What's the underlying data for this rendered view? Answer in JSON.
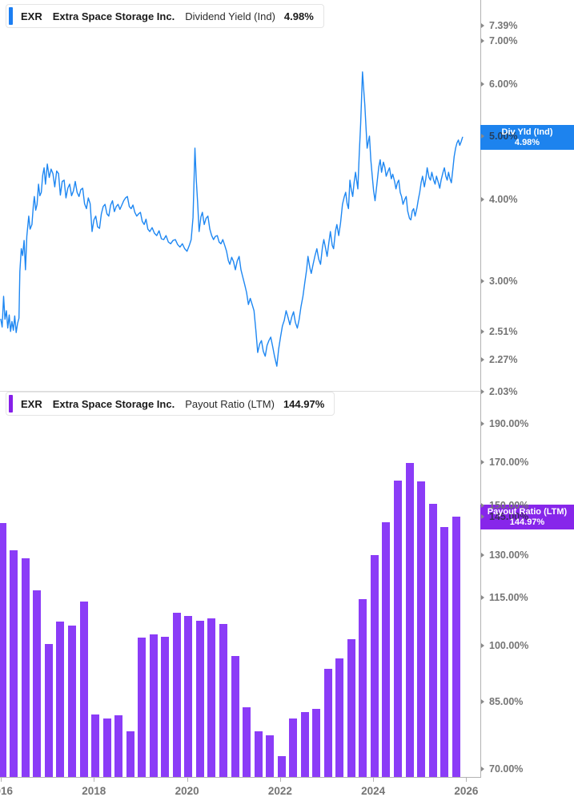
{
  "colors": {
    "dividend_line": "#1e87f2",
    "dividend_badge": "#1d83ee",
    "dividend_accent": "#1c7ef2",
    "payout_bar": "#8b3cf7",
    "payout_badge": "#8726ea",
    "payout_accent": "#861fe9",
    "tick_text": "#757575",
    "axis_line": "#b3b3b3",
    "divider": "#dcdcdc"
  },
  "x_axis": {
    "xlim": [
      2015.983,
      2026.302
    ],
    "ticks": [
      {
        "label": "2016",
        "year": 2016
      },
      {
        "label": "2018",
        "year": 2018
      },
      {
        "label": "2020",
        "year": 2020
      },
      {
        "label": "2022",
        "year": 2022
      },
      {
        "label": "2024",
        "year": 2024
      },
      {
        "label": "2026",
        "year": 2026
      }
    ]
  },
  "top_panel": {
    "chip": {
      "ticker": "EXR",
      "company": "Extra Space Storage Inc.",
      "metric": "Dividend Yield (Ind)",
      "value": "4.98%"
    },
    "badge": {
      "title": "Div Yld (Ind)",
      "value": "4.98%",
      "value_num": 4.98
    },
    "y_ticks": [
      {
        "label": "7.39%",
        "value": 7.39
      },
      {
        "label": "7.00%",
        "value": 7.0
      },
      {
        "label": "6.00%",
        "value": 6.0
      },
      {
        "label": "5.00%",
        "value": 5.0,
        "hidden_behind_badge": true
      },
      {
        "label": "4.00%",
        "value": 4.0
      },
      {
        "label": "3.00%",
        "value": 3.0
      },
      {
        "label": "2.51%",
        "value": 2.51
      },
      {
        "label": "2.27%",
        "value": 2.27
      },
      {
        "label": "2.03%",
        "value": 2.03
      }
    ],
    "chart_data": {
      "type": "line",
      "title": "EXR Extra Space Storage Inc. Dividend Yield (Ind)",
      "unit": "%",
      "scale": "log",
      "ylim_log": [
        2.035,
        8.08
      ],
      "current_value": 4.98,
      "x": [
        2016.0,
        2016.03,
        2016.06,
        2016.09,
        2016.12,
        2016.15,
        2016.18,
        2016.21,
        2016.24,
        2016.27,
        2016.3,
        2016.33,
        2016.36,
        2016.39,
        2016.41,
        2016.44,
        2016.47,
        2016.5,
        2016.53,
        2016.56,
        2016.6,
        2016.63,
        2016.67,
        2016.7,
        2016.72,
        2016.75,
        2016.78,
        2016.81,
        2016.84,
        2016.87,
        2016.9,
        2016.93,
        2016.96,
        2017.0,
        2017.04,
        2017.08,
        2017.12,
        2017.16,
        2017.2,
        2017.24,
        2017.28,
        2017.32,
        2017.36,
        2017.4,
        2017.44,
        2017.48,
        2017.52,
        2017.56,
        2017.6,
        2017.64,
        2017.68,
        2017.72,
        2017.76,
        2017.8,
        2017.84,
        2017.88,
        2017.92,
        2017.96,
        2018.0,
        2018.04,
        2018.08,
        2018.12,
        2018.16,
        2018.2,
        2018.24,
        2018.28,
        2018.32,
        2018.36,
        2018.4,
        2018.44,
        2018.48,
        2018.52,
        2018.56,
        2018.6,
        2018.64,
        2018.68,
        2018.72,
        2018.76,
        2018.8,
        2018.84,
        2018.88,
        2018.92,
        2018.96,
        2019.0,
        2019.04,
        2019.08,
        2019.12,
        2019.16,
        2019.2,
        2019.25,
        2019.3,
        2019.35,
        2019.4,
        2019.45,
        2019.5,
        2019.55,
        2019.6,
        2019.65,
        2019.7,
        2019.75,
        2019.8,
        2019.85,
        2019.9,
        2019.95,
        2020.0,
        2020.05,
        2020.09,
        2020.13,
        2020.17,
        2020.2,
        2020.23,
        2020.26,
        2020.3,
        2020.33,
        2020.37,
        2020.41,
        2020.45,
        2020.49,
        2020.53,
        2020.57,
        2020.61,
        2020.65,
        2020.69,
        2020.73,
        2020.77,
        2020.81,
        2020.85,
        2020.89,
        2020.92,
        2020.96,
        2021.0,
        2021.04,
        2021.08,
        2021.12,
        2021.16,
        2021.2,
        2021.24,
        2021.28,
        2021.32,
        2021.36,
        2021.4,
        2021.44,
        2021.48,
        2021.52,
        2021.56,
        2021.6,
        2021.64,
        2021.68,
        2021.72,
        2021.76,
        2021.8,
        2021.84,
        2021.88,
        2021.93,
        2021.97,
        2022.01,
        2022.05,
        2022.09,
        2022.13,
        2022.17,
        2022.21,
        2022.25,
        2022.29,
        2022.33,
        2022.37,
        2022.41,
        2022.45,
        2022.49,
        2022.53,
        2022.57,
        2022.6,
        2022.64,
        2022.67,
        2022.71,
        2022.75,
        2022.79,
        2022.83,
        2022.87,
        2022.91,
        2022.94,
        2022.98,
        2023.01,
        2023.05,
        2023.08,
        2023.12,
        2023.15,
        2023.19,
        2023.22,
        2023.26,
        2023.3,
        2023.34,
        2023.38,
        2023.41,
        2023.44,
        2023.47,
        2023.5,
        2023.53,
        2023.56,
        2023.59,
        2023.62,
        2023.65,
        2023.67,
        2023.7,
        2023.73,
        2023.77,
        2023.8,
        2023.82,
        2023.85,
        2023.87,
        2023.9,
        2023.92,
        2023.95,
        2023.98,
        2024.01,
        2024.04,
        2024.08,
        2024.12,
        2024.15,
        2024.18,
        2024.22,
        2024.25,
        2024.28,
        2024.32,
        2024.35,
        2024.39,
        2024.42,
        2024.46,
        2024.49,
        2024.52,
        2024.55,
        2024.58,
        2024.61,
        2024.64,
        2024.68,
        2024.71,
        2024.74,
        2024.78,
        2024.81,
        2024.84,
        2024.87,
        2024.9,
        2024.94,
        2024.97,
        2025.0,
        2025.03,
        2025.06,
        2025.1,
        2025.13,
        2025.16,
        2025.2,
        2025.23,
        2025.26,
        2025.3,
        2025.33,
        2025.36,
        2025.4,
        2025.43,
        2025.46,
        2025.5,
        2025.53,
        2025.56,
        2025.59,
        2025.62,
        2025.65,
        2025.68,
        2025.71,
        2025.74,
        2025.77,
        2025.8,
        2025.83,
        2025.86,
        2025.89,
        2025.92
      ],
      "y": [
        2.62,
        2.55,
        2.84,
        2.62,
        2.7,
        2.54,
        2.66,
        2.51,
        2.6,
        2.52,
        2.65,
        2.5,
        2.58,
        2.63,
        3.1,
        3.36,
        3.28,
        3.46,
        3.12,
        3.51,
        3.77,
        3.6,
        3.66,
        3.92,
        4.04,
        3.85,
        3.93,
        4.22,
        4.05,
        4.1,
        4.35,
        4.47,
        4.22,
        4.53,
        4.32,
        4.45,
        4.38,
        4.18,
        4.42,
        4.38,
        4.06,
        4.26,
        4.28,
        4.02,
        4.16,
        4.22,
        4.05,
        4.12,
        4.26,
        4.1,
        4.04,
        4.14,
        4.16,
        3.94,
        3.87,
        4.02,
        3.94,
        3.57,
        3.72,
        3.77,
        3.63,
        3.61,
        3.8,
        3.9,
        3.93,
        3.8,
        3.77,
        3.92,
        3.98,
        3.83,
        3.9,
        3.93,
        3.86,
        3.92,
        3.98,
        4.02,
        4.04,
        3.9,
        3.87,
        3.92,
        3.82,
        3.77,
        3.8,
        3.82,
        3.7,
        3.66,
        3.73,
        3.6,
        3.57,
        3.62,
        3.55,
        3.52,
        3.58,
        3.48,
        3.47,
        3.52,
        3.44,
        3.42,
        3.46,
        3.47,
        3.41,
        3.38,
        3.42,
        3.36,
        3.33,
        3.4,
        3.47,
        3.75,
        4.79,
        4.28,
        3.95,
        3.57,
        3.76,
        3.82,
        3.66,
        3.74,
        3.77,
        3.6,
        3.52,
        3.47,
        3.51,
        3.52,
        3.44,
        3.42,
        3.47,
        3.4,
        3.33,
        3.22,
        3.18,
        3.26,
        3.21,
        3.12,
        3.22,
        3.27,
        3.12,
        3.04,
        2.96,
        2.88,
        2.76,
        2.82,
        2.76,
        2.7,
        2.52,
        2.33,
        2.4,
        2.43,
        2.34,
        2.3,
        2.39,
        2.43,
        2.46,
        2.38,
        2.3,
        2.22,
        2.36,
        2.46,
        2.56,
        2.61,
        2.7,
        2.64,
        2.57,
        2.64,
        2.69,
        2.59,
        2.54,
        2.62,
        2.74,
        2.84,
        2.98,
        3.12,
        3.27,
        3.14,
        3.08,
        3.18,
        3.28,
        3.36,
        3.24,
        3.18,
        3.38,
        3.47,
        3.36,
        3.27,
        3.44,
        3.57,
        3.4,
        3.36,
        3.58,
        3.66,
        3.52,
        3.68,
        3.93,
        4.04,
        4.1,
        3.94,
        3.87,
        4.28,
        4.14,
        4.04,
        4.24,
        4.4,
        4.25,
        4.15,
        4.68,
        5.22,
        6.27,
        5.85,
        5.58,
        5.1,
        4.79,
        4.92,
        5.0,
        4.6,
        4.34,
        4.12,
        3.98,
        4.22,
        4.48,
        4.6,
        4.4,
        4.56,
        4.48,
        4.34,
        4.42,
        4.47,
        4.3,
        4.37,
        4.26,
        4.15,
        4.24,
        4.28,
        4.1,
        4.04,
        3.93,
        4.0,
        4.04,
        3.84,
        3.74,
        3.72,
        3.84,
        3.87,
        3.77,
        3.88,
        4.0,
        4.1,
        4.24,
        4.34,
        4.18,
        4.3,
        4.47,
        4.32,
        4.28,
        4.4,
        4.28,
        4.22,
        4.34,
        4.24,
        4.16,
        4.28,
        4.4,
        4.47,
        4.34,
        4.28,
        4.4,
        4.3,
        4.24,
        4.44,
        4.65,
        4.79,
        4.88,
        4.93,
        4.84,
        4.9,
        4.98
      ]
    }
  },
  "bottom_panel": {
    "chip": {
      "ticker": "EXR",
      "company": "Extra Space Storage Inc.",
      "metric": "Payout Ratio (LTM)",
      "value": "144.97%"
    },
    "badge": {
      "title": "Payout Ratio (LTM)",
      "value": "144.97%",
      "value_num": 144.97
    },
    "y_ticks": [
      {
        "label": "190.00%",
        "value": 190
      },
      {
        "label": "170.00%",
        "value": 170
      },
      {
        "label": "150.00%",
        "value": 150
      },
      {
        "label": "145.00%",
        "value": 145,
        "hidden_behind_badge": true
      },
      {
        "label": "130.00%",
        "value": 130
      },
      {
        "label": "115.00%",
        "value": 115
      },
      {
        "label": "100.00%",
        "value": 100
      },
      {
        "label": "85.00%",
        "value": 85
      },
      {
        "label": "70.00%",
        "value": 70
      }
    ],
    "chart_data": {
      "type": "bar",
      "title": "EXR Extra Space Storage Inc. Payout Ratio (LTM)",
      "unit": "%",
      "scale": "log",
      "ylim_log": [
        68.4,
        208.7
      ],
      "current_value": 144.97,
      "categories": [
        "2016 Q1",
        "2016 Q2",
        "2016 Q3",
        "2016 Q4",
        "2017 Q1",
        "2017 Q2",
        "2017 Q3",
        "2017 Q4",
        "2018 Q1",
        "2018 Q2",
        "2018 Q3",
        "2018 Q4",
        "2019 Q1",
        "2019 Q2",
        "2019 Q3",
        "2019 Q4",
        "2020 Q1",
        "2020 Q2",
        "2020 Q3",
        "2020 Q4",
        "2021 Q1",
        "2021 Q2",
        "2021 Q3",
        "2021 Q4",
        "2022 Q1",
        "2022 Q2",
        "2022 Q3",
        "2022 Q4",
        "2023 Q1",
        "2023 Q2",
        "2023 Q3",
        "2023 Q4",
        "2024 Q1",
        "2024 Q2",
        "2024 Q3",
        "2024 Q4",
        "2025 Q1",
        "2025 Q2",
        "2025 Q3",
        "2025 Q4"
      ],
      "values": [
        142.5,
        131.7,
        128.7,
        117.3,
        100.5,
        107.2,
        105.9,
        113.6,
        81.9,
        81.0,
        81.7,
        78.1,
        102.3,
        103.3,
        102.6,
        109.9,
        108.9,
        107.4,
        108.2,
        106.4,
        97.0,
        83.7,
        78.1,
        77.2,
        72.7,
        81.0,
        82.5,
        83.3,
        93.5,
        96.4,
        101.9,
        114.4,
        129.9,
        142.9,
        161.1,
        169.5,
        160.8,
        150.6,
        140.9,
        144.97
      ]
    }
  }
}
